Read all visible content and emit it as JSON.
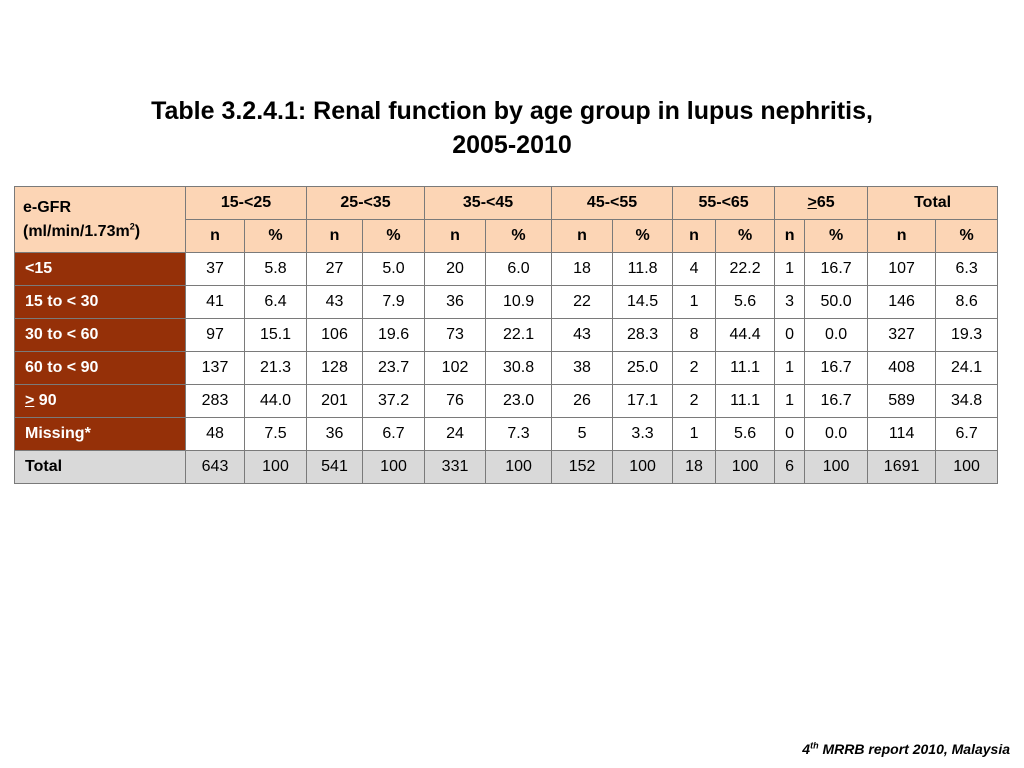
{
  "title": {
    "line1": "Table 3.2.4.1: Renal function by age group in lupus nephritis,",
    "line2": "2005-2010"
  },
  "header": {
    "egfr_label": "e-GFR",
    "egfr_unit_pre": "(ml/min/1.73m",
    "egfr_unit_sup": "2",
    "egfr_unit_post": ")",
    "groups": [
      "15-<25",
      "25-<35",
      "35-<45",
      "45-<55",
      "55-<65",
      ">65",
      "Total"
    ],
    "ge_symbol": ">",
    "ge_value": "65",
    "sub_n": "n",
    "sub_pct": "%"
  },
  "rows": [
    {
      "label": "<15",
      "cells": [
        "37",
        "5.8",
        "27",
        "5.0",
        "20",
        "6.0",
        "18",
        "11.8",
        "4",
        "22.2",
        "1",
        "16.7",
        "107",
        "6.3"
      ]
    },
    {
      "label": "15 to < 30",
      "cells": [
        "41",
        "6.4",
        "43",
        "7.9",
        "36",
        "10.9",
        "22",
        "14.5",
        "1",
        "5.6",
        "3",
        "50.0",
        "146",
        "8.6"
      ]
    },
    {
      "label": "30 to < 60",
      "cells": [
        "97",
        "15.1",
        "106",
        "19.6",
        "73",
        "22.1",
        "43",
        "28.3",
        "8",
        "44.4",
        "0",
        "0.0",
        "327",
        "19.3"
      ]
    },
    {
      "label": "60 to < 90",
      "cells": [
        "137",
        "21.3",
        "128",
        "23.7",
        "102",
        "30.8",
        "38",
        "25.0",
        "2",
        "11.1",
        "1",
        "16.7",
        "408",
        "24.1"
      ]
    },
    {
      "label_symbol": ">",
      "label_value": " 90",
      "cells": [
        "283",
        "44.0",
        "201",
        "37.2",
        "76",
        "23.0",
        "26",
        "17.1",
        "2",
        "11.1",
        "1",
        "16.7",
        "589",
        "34.8"
      ]
    },
    {
      "label": "Missing*",
      "cells": [
        "48",
        "7.5",
        "36",
        "6.7",
        "24",
        "7.3",
        "5",
        "3.3",
        "1",
        "5.6",
        "0",
        "0.0",
        "114",
        "6.7"
      ]
    }
  ],
  "total_row": {
    "label": "Total",
    "cells": [
      "643",
      "100",
      "541",
      "100",
      "331",
      "100",
      "152",
      "100",
      "18",
      "100",
      "6",
      "100",
      "1691",
      "100"
    ]
  },
  "footer": {
    "sup": "th",
    "pre": "4",
    "text": " MRRB report 2010, Malaysia"
  },
  "colors": {
    "header_bg": "#fcd5b5",
    "row_label_bg": "#953008",
    "total_bg": "#d9d9d9"
  }
}
